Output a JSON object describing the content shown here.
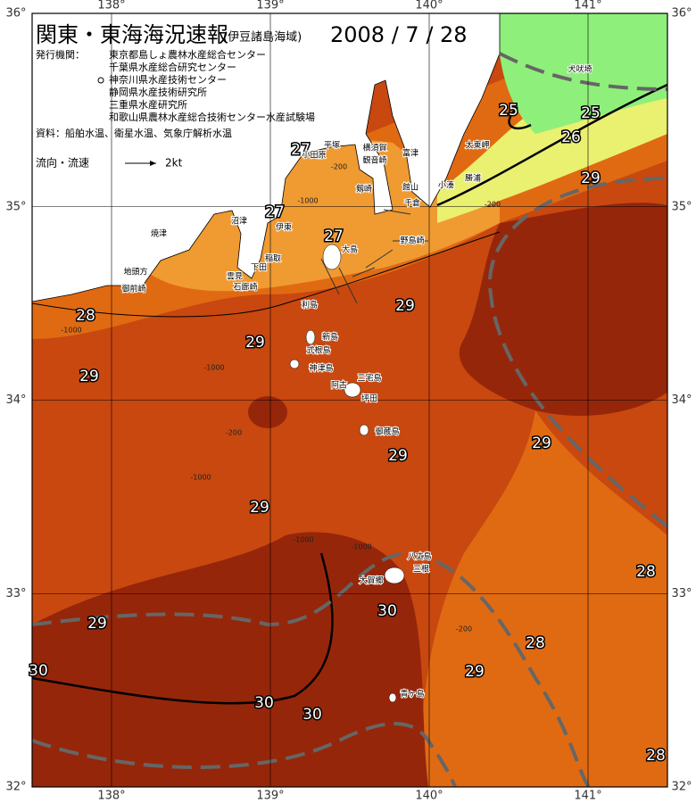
{
  "header": {
    "title": "関東・東海海況速報",
    "subtitle": "(伊豆諸島海域)",
    "date": "2008 / 7 / 28",
    "agency_label": "発行機関：",
    "agencies": [
      "東京都島しょ農林水産総合センター",
      "千葉県水産総合研究センター",
      "神奈川県水産技術センター",
      "静岡県水産技術研究所",
      "三重県水産研究所",
      "和歌山県農林水産総合技術センター水産試験場"
    ],
    "sources": "資料：船舶水温、衛星水温、気象庁解析水温"
  },
  "legend": {
    "label": "流向・流速",
    "unit": "2kt"
  },
  "map": {
    "lon_ticks": [
      {
        "value": 138,
        "label": "138°"
      },
      {
        "value": 139,
        "label": "139°"
      },
      {
        "value": 140,
        "label": "140°"
      },
      {
        "value": 141,
        "label": "141°"
      }
    ],
    "lat_ticks": [
      {
        "value": 36,
        "label": "36°"
      },
      {
        "value": 35,
        "label": "35°"
      },
      {
        "value": 34,
        "label": "34°"
      },
      {
        "value": 33,
        "label": "33°"
      },
      {
        "value": 32,
        "label": "32°"
      }
    ],
    "isotherm_labels": [
      25,
      25,
      26,
      29,
      27,
      27,
      27,
      28,
      29,
      29,
      29,
      29,
      29,
      29,
      28,
      29,
      30,
      28,
      29,
      30,
      30,
      30,
      28
    ],
    "place_names": [
      "犬吠埼",
      "太東岬",
      "勝浦",
      "小湊",
      "館山",
      "千倉",
      "野島崎",
      "富津",
      "横須賀",
      "観音崎",
      "平塚",
      "小田原",
      "剱崎",
      "伊東",
      "沼津",
      "焼津",
      "地頭方",
      "御前崎",
      "石廊崎",
      "雲見",
      "下田",
      "稲取",
      "大島",
      "利島",
      "新島",
      "式根島",
      "神津島",
      "三宅島",
      "坪田",
      "阿古",
      "御蔵島",
      "八丈島",
      "三根",
      "大賀郷",
      "青ヶ島"
    ],
    "depth_labels": [
      "-200",
      "-1000",
      "-200",
      "-1000",
      "-1000",
      "-200",
      "-1000",
      "-1000",
      "-1000",
      "-200"
    ]
  }
}
